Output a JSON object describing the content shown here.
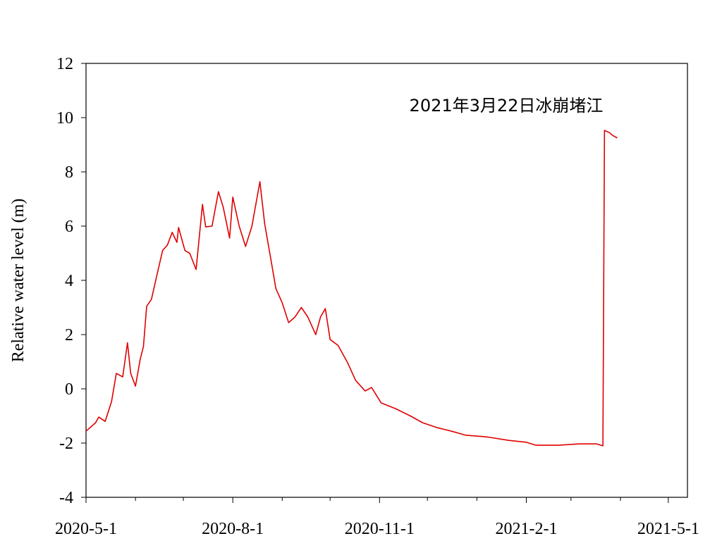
{
  "chart_data": {
    "type": "line",
    "annotation": "2021年3月22日冰崩堵江",
    "y_label": "Relative water level (m)",
    "x": [
      "2020-5-1",
      "2020-5-7",
      "2020-5-9",
      "2020-5-13",
      "2020-5-17",
      "2020-5-20",
      "2020-5-24",
      "2020-5-27",
      "2020-5-29",
      "2020-6-1",
      "2020-6-4",
      "2020-6-6",
      "2020-6-8",
      "2020-6-11",
      "2020-6-14",
      "2020-6-18",
      "2020-6-21",
      "2020-6-24",
      "2020-6-27",
      "2020-6-28",
      "2020-7-2",
      "2020-7-5",
      "2020-7-9",
      "2020-7-13",
      "2020-7-15",
      "2020-7-19",
      "2020-7-23",
      "2020-7-26",
      "2020-7-30",
      "2020-8-1",
      "2020-8-5",
      "2020-8-9",
      "2020-8-13",
      "2020-8-18",
      "2020-8-21",
      "2020-8-25",
      "2020-8-28",
      "2020-9-1",
      "2020-9-5",
      "2020-9-9",
      "2020-9-13",
      "2020-9-17",
      "2020-9-22",
      "2020-9-25",
      "2020-9-28",
      "2020-10-1",
      "2020-10-6",
      "2020-10-12",
      "2020-10-17",
      "2020-10-23",
      "2020-10-27",
      "2020-11-2",
      "2020-11-11",
      "2020-11-20",
      "2020-11-28",
      "2020-12-7",
      "2020-12-16",
      "2020-12-25",
      "2021-1-7",
      "2021-1-21",
      "2021-2-1",
      "2021-2-7",
      "2021-2-21",
      "2021-3-6",
      "2021-3-17",
      "2021-3-21",
      "2021-3-22",
      "2021-3-25",
      "2021-3-27",
      "2021-3-30"
    ],
    "series": [
      {
        "name": "Relative water level",
        "color": "#e00000",
        "values": [
          -1.56,
          -1.25,
          -1.04,
          -1.2,
          -0.47,
          0.57,
          0.44,
          1.7,
          0.57,
          0.1,
          1.1,
          1.56,
          3.04,
          3.3,
          4.08,
          5.1,
          5.3,
          5.77,
          5.4,
          5.95,
          5.1,
          5.0,
          4.4,
          6.8,
          5.97,
          6.0,
          7.27,
          6.7,
          5.56,
          7.07,
          6.0,
          5.25,
          6.0,
          7.64,
          6.08,
          4.73,
          3.7,
          3.17,
          2.44,
          2.65,
          3.0,
          2.65,
          2.0,
          2.65,
          2.96,
          1.82,
          1.6,
          0.96,
          0.31,
          -0.08,
          0.05,
          -0.52,
          -0.73,
          -0.99,
          -1.25,
          -1.43,
          -1.56,
          -1.71,
          -1.77,
          -1.9,
          -1.97,
          -2.08,
          -2.08,
          -2.03,
          -2.03,
          -2.1,
          9.53,
          9.45,
          9.35,
          9.25
        ]
      }
    ],
    "xlim": [
      "2020-5-1",
      "2021-5-13"
    ],
    "xticks": [
      "2020-5-1",
      "2020-8-1",
      "2020-11-1",
      "2021-2-1",
      "2021-5-1"
    ],
    "xminorticks": [
      "2020-6-1",
      "2020-7-1",
      "2020-9-1",
      "2020-10-1",
      "2020-12-1",
      "2021-1-1",
      "2021-3-1",
      "2021-4-1"
    ],
    "ylim": [
      -4,
      12
    ],
    "yticks": [
      -4,
      -2,
      0,
      2,
      4,
      6,
      8,
      10,
      12
    ],
    "grid": false
  }
}
